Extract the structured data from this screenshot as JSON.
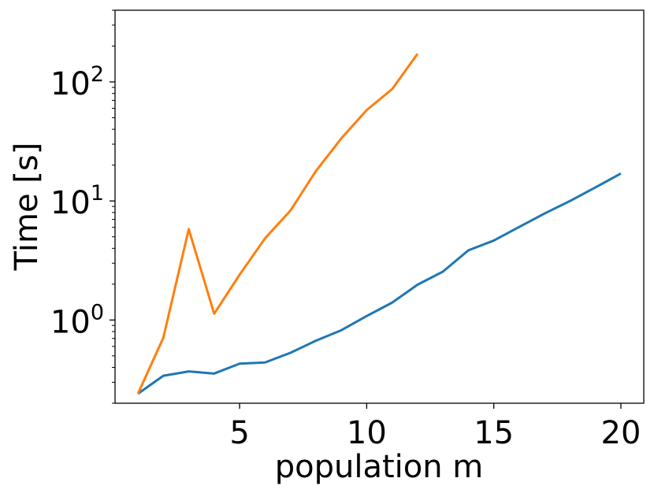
{
  "chart_data": {
    "type": "line",
    "xlabel": "population m",
    "ylabel": "Time [s]",
    "xlim": [
      0.1,
      20.9
    ],
    "ylim": [
      0.2,
      400
    ],
    "y_scale": "log",
    "grid": false,
    "legend": "none",
    "x_ticks": [
      {
        "value": 5,
        "label": "5"
      },
      {
        "value": 10,
        "label": "10"
      },
      {
        "value": 15,
        "label": "15"
      },
      {
        "value": 20,
        "label": "20"
      }
    ],
    "y_ticks": [
      {
        "value": 1,
        "base": "10",
        "exp": "0"
      },
      {
        "value": 10,
        "base": "10",
        "exp": "1"
      },
      {
        "value": 100,
        "base": "10",
        "exp": "2"
      }
    ],
    "series": [
      {
        "color": "#1f77b4",
        "x": [
          1,
          2,
          3,
          4,
          5,
          6,
          7,
          8,
          9,
          10,
          11,
          12,
          13,
          14,
          15,
          16,
          17,
          18,
          19,
          20
        ],
        "values": [
          0.24,
          0.34,
          0.37,
          0.355,
          0.43,
          0.44,
          0.53,
          0.67,
          0.82,
          1.08,
          1.4,
          1.98,
          2.55,
          3.85,
          4.65,
          6.05,
          7.85,
          10.0,
          13.0,
          17.0
        ]
      },
      {
        "color": "#ff7f0e",
        "x": [
          1,
          2,
          3,
          4,
          5,
          6,
          7,
          8,
          9,
          10,
          11,
          12
        ],
        "values": [
          0.24,
          0.71,
          5.8,
          1.13,
          2.4,
          4.85,
          8.3,
          17.8,
          33.5,
          58.0,
          87.0,
          172.0
        ]
      }
    ]
  }
}
